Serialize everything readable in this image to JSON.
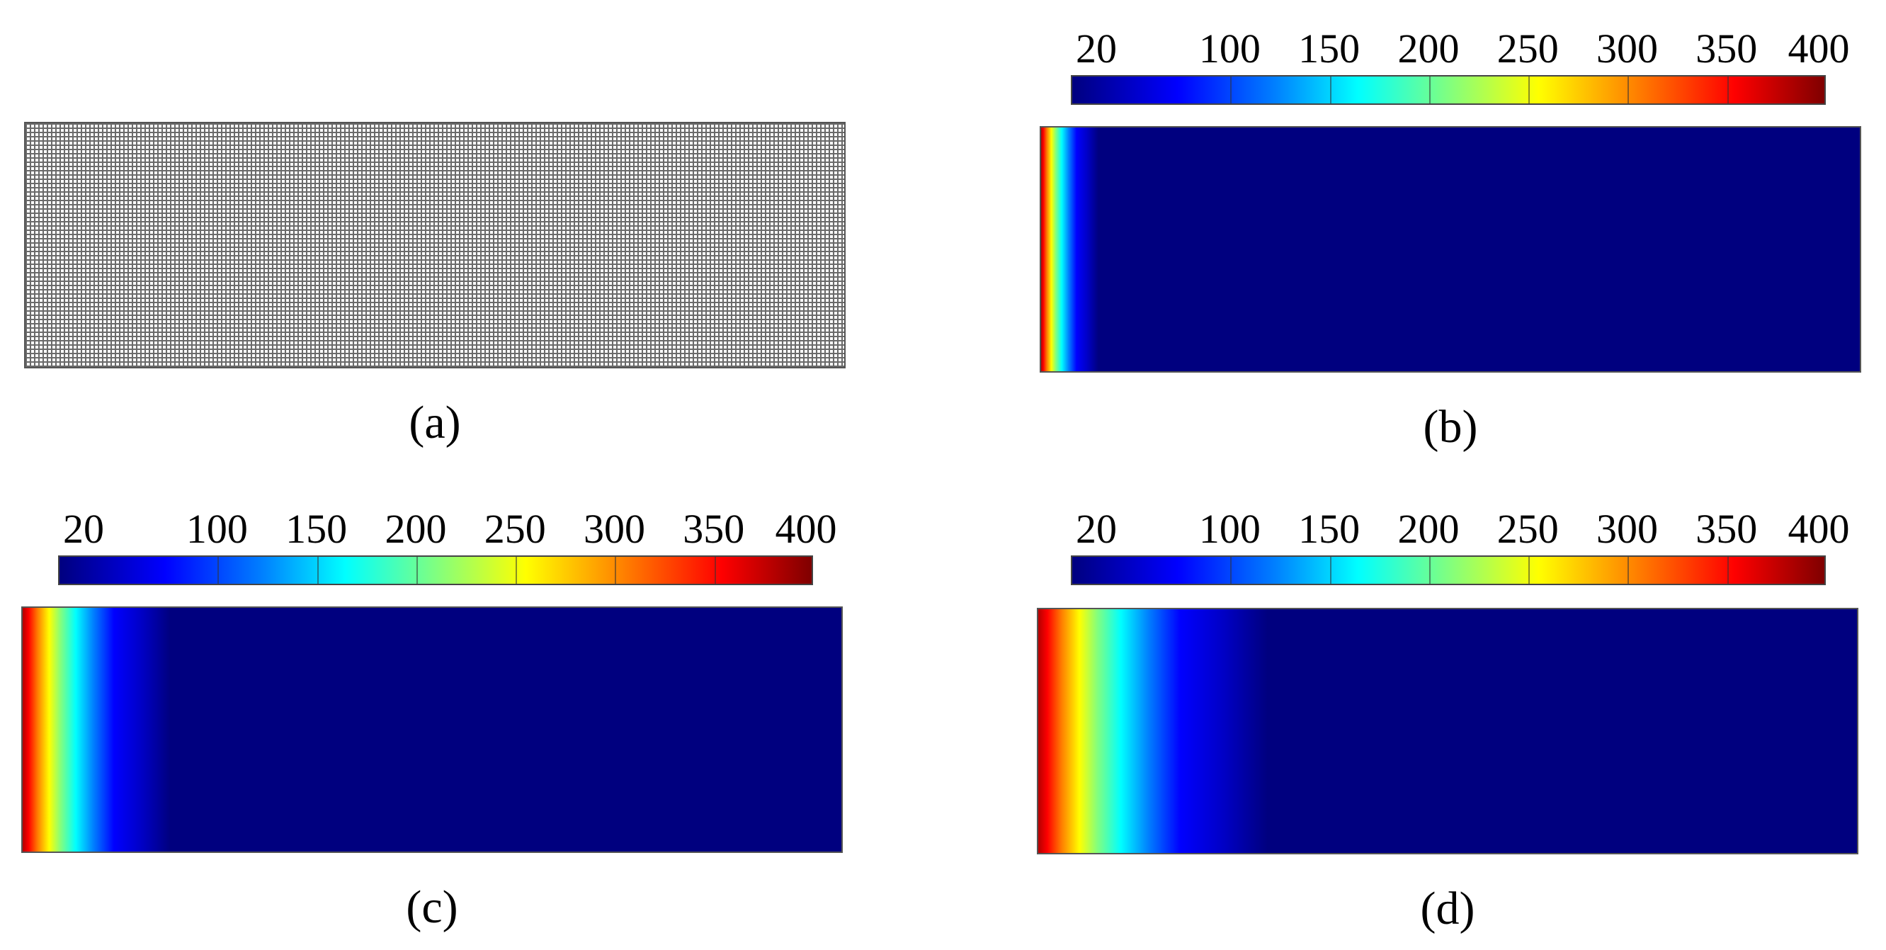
{
  "panels": [
    {
      "id": "a",
      "caption": "(a)",
      "type": "mesh",
      "hot_fraction": 0.0
    },
    {
      "id": "b",
      "caption": "(b)",
      "type": "temperature",
      "hot_fraction": 0.07
    },
    {
      "id": "c",
      "caption": "(c)",
      "type": "temperature",
      "hot_fraction": 0.18
    },
    {
      "id": "d",
      "caption": "(d)",
      "type": "temperature",
      "hot_fraction": 0.28
    }
  ],
  "colorbar": {
    "min": 20,
    "max": 400,
    "ticks": [
      "20",
      "100",
      "150",
      "200",
      "250",
      "300",
      "350",
      "400"
    ],
    "colormap": "jet"
  }
}
